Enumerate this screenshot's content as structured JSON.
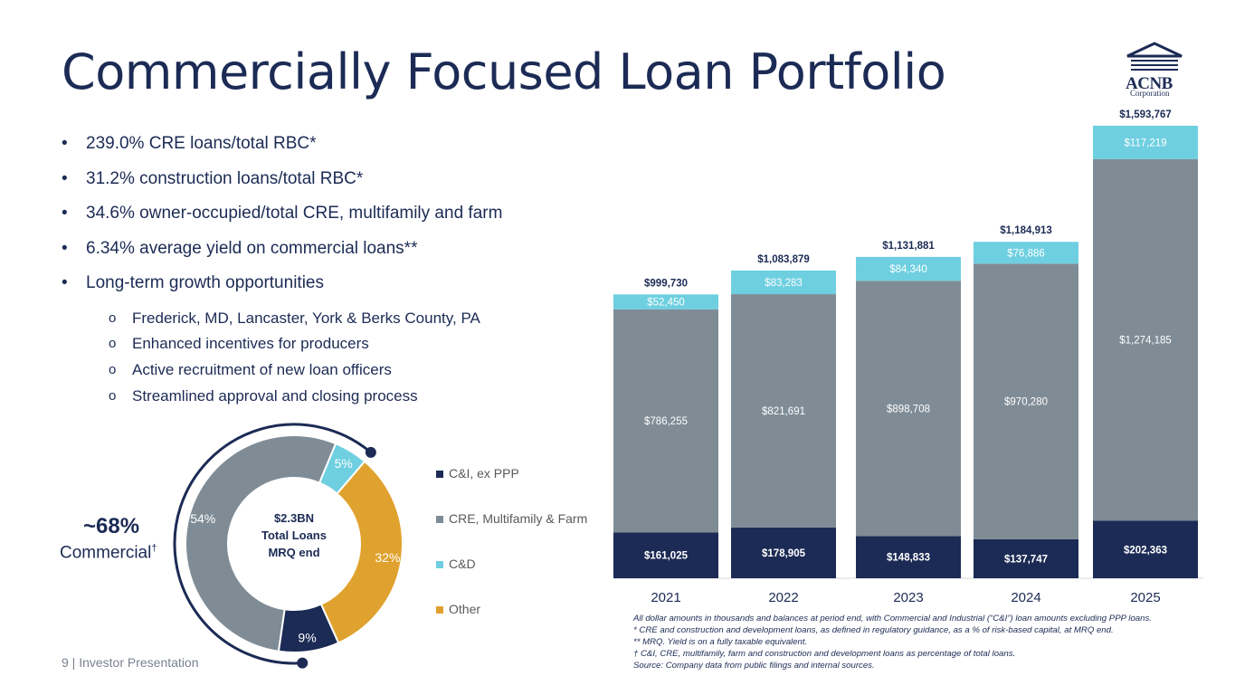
{
  "page": {
    "title": "Commercially Focused Loan Portfolio",
    "footer": "9  | Investor Presentation",
    "logo_name": "ACNB",
    "logo_sub": "Corporation"
  },
  "bullets": [
    "239.0% CRE loans/total RBC*",
    "31.2% construction loans/total RBC*",
    "34.6% owner-occupied/total CRE, multifamily and farm",
    "6.34% average yield on commercial loans**",
    "Long-term growth opportunities"
  ],
  "sub_bullets": [
    "Frederick, MD, Lancaster, York & Berks County, PA",
    "Enhanced incentives for producers",
    "Active recruitment of new loan officers",
    "Streamlined approval and closing process"
  ],
  "sub_marker": "o",
  "commercial": {
    "pct": "~68%",
    "label": "Commercial",
    "mark": "†"
  },
  "notes": [
    "All dollar amounts in thousands and balances at period end, with Commercial and Industrial (“C&I”) loan amounts excluding PPP loans.",
    "* CRE and construction and development loans, as defined in regulatory guidance, as a % of risk-based capital, at MRQ end.",
    "** MRQ. Yield is on a fully taxable equivalent.",
    "† C&I, CRE, multifamily, farm and construction and development loans as percentage of total loans.",
    "Source: Company data from public filings and internal sources."
  ],
  "colors": {
    "ci": "#1c2b55",
    "cre": "#7f8c96",
    "cd": "#6ecfe0",
    "other": "#e0a22e"
  },
  "chart_data": [
    {
      "type": "bar",
      "stacked": true,
      "categories": [
        "2021",
        "2022",
        "2023",
        "2024",
        "2025"
      ],
      "series": [
        {
          "name": "C&I, ex PPP",
          "values": [
            161025,
            178905,
            148833,
            137747,
            202363
          ],
          "labels": [
            "$161,025",
            "$178,905",
            "$148,833",
            "$137,747",
            "$202,363"
          ]
        },
        {
          "name": "CRE, Multifamily & Farm",
          "values": [
            786255,
            821691,
            898708,
            970280,
            1274185
          ],
          "labels": [
            "$786,255",
            "$821,691",
            "$898,708",
            "$970,280",
            "$1,274,185"
          ]
        },
        {
          "name": "C&D",
          "values": [
            52450,
            83283,
            84340,
            76886,
            117219
          ],
          "labels": [
            "$52,450",
            "$83,283",
            "$84,340",
            "$76,886",
            "$117,219"
          ]
        }
      ],
      "totals": [
        999730,
        1083879,
        1131881,
        1184913,
        1593767
      ],
      "total_labels": [
        "$999,730",
        "$1,083,879",
        "$1,131,881",
        "$1,184,913",
        "$1,593,767"
      ]
    },
    {
      "type": "pie",
      "donut": true,
      "center_text": [
        "$2.3BN",
        "Total Loans",
        "MRQ end"
      ],
      "slices": [
        {
          "name": "C&I, ex PPP",
          "value": 9,
          "label": "9%"
        },
        {
          "name": "CRE, Multifamily & Farm",
          "value": 54,
          "label": "54%"
        },
        {
          "name": "C&D",
          "value": 5,
          "label": "5%"
        },
        {
          "name": "Other",
          "value": 32,
          "label": "32%"
        }
      ],
      "legend": [
        "C&I, ex PPP",
        "CRE, Multifamily & Farm",
        "C&D",
        "Other"
      ],
      "legend_placement": "right"
    }
  ]
}
